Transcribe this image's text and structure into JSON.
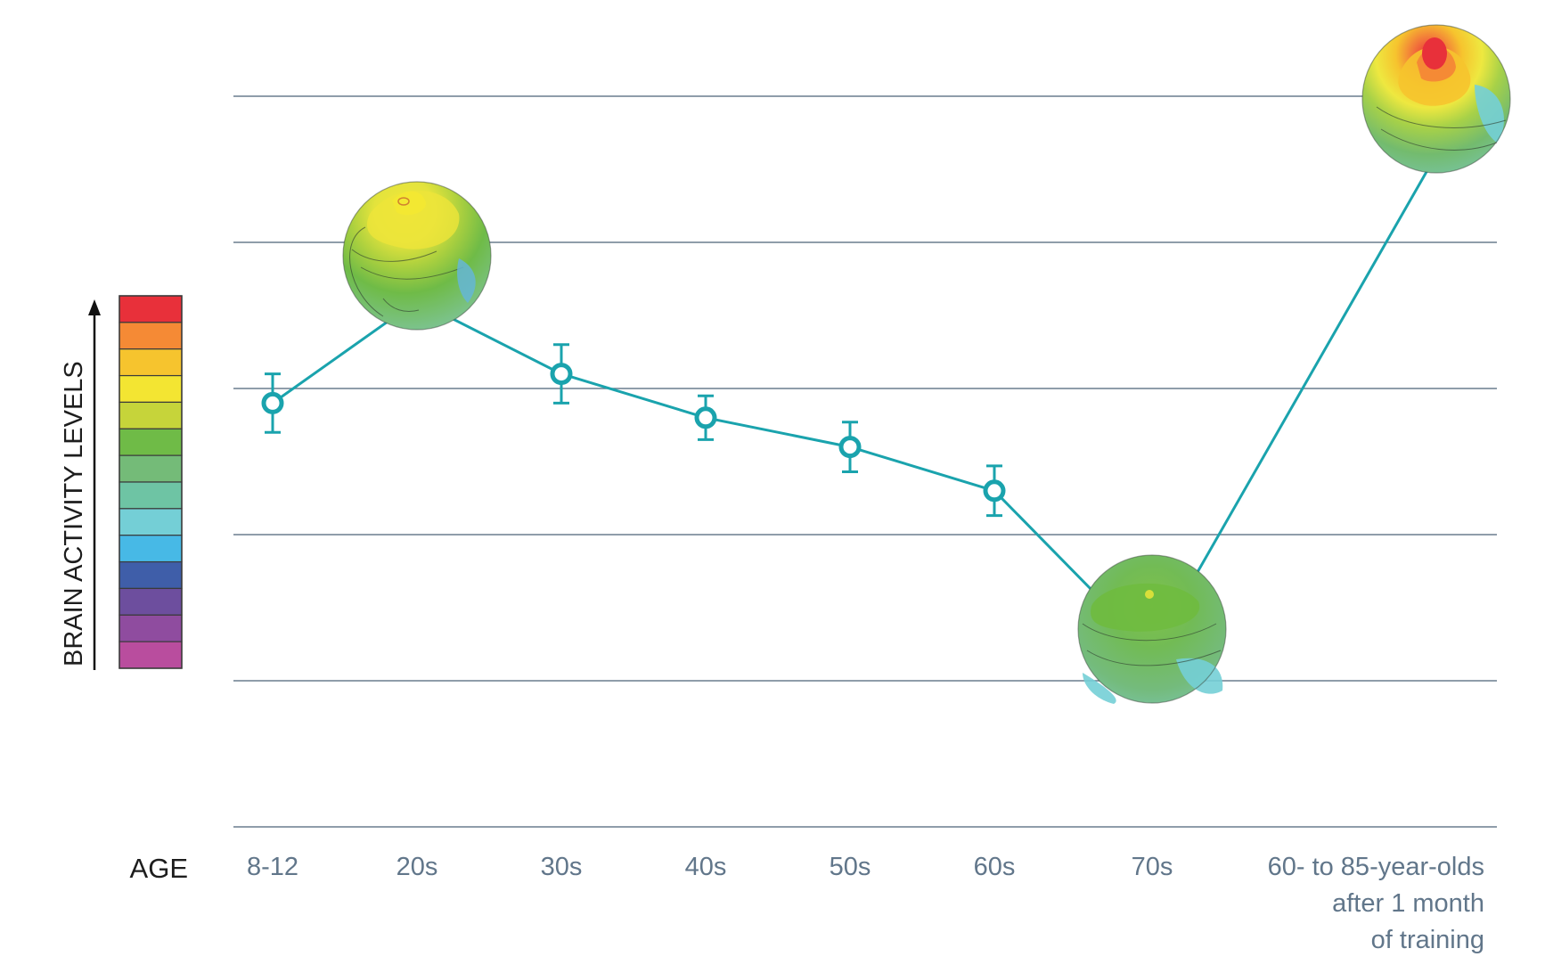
{
  "chart_data": {
    "type": "line",
    "title": "",
    "xlabel": "AGE",
    "ylabel": "BRAIN ACTIVITY LEVELS",
    "categories": [
      "8-12",
      "20s",
      "30s",
      "40s",
      "50s",
      "60s",
      "70s",
      "60- to 85-year-olds after 1 month of training"
    ],
    "category_lines": [
      [
        "8-12"
      ],
      [
        "20s"
      ],
      [
        "30s"
      ],
      [
        "40s"
      ],
      [
        "50s"
      ],
      [
        "60s"
      ],
      [
        "70s"
      ],
      [
        "60- to 85-year-olds",
        "after 1 month",
        "of training"
      ]
    ],
    "series": [
      {
        "values": [
          2.9,
          3.6,
          3.1,
          2.8,
          2.6,
          2.3,
          1.2,
          4.6
        ],
        "error": [
          0.2,
          null,
          0.2,
          0.15,
          0.17,
          0.17,
          null,
          null
        ],
        "color": "#1aa3ad"
      }
    ],
    "ylim": [
      0,
      5
    ],
    "grid_lines": [
      1,
      2,
      3,
      4,
      5
    ],
    "brain_maps": [
      "20s",
      "70s",
      "60- to 85-year-olds after 1 month of training"
    ],
    "activity_scale_colors": [
      "#e8303a",
      "#f58a35",
      "#f6c42e",
      "#f3e532",
      "#c6d43a",
      "#6fbb47",
      "#74bb78",
      "#6ec4a4",
      "#74cfd6",
      "#47b9e6",
      "#3f5ea9",
      "#6d4e9e",
      "#8f4c9f",
      "#b94d9e"
    ],
    "colors": {
      "line": "#1aa3ad",
      "grid": "#6a7d8e",
      "tick_text": "#61768a"
    }
  }
}
